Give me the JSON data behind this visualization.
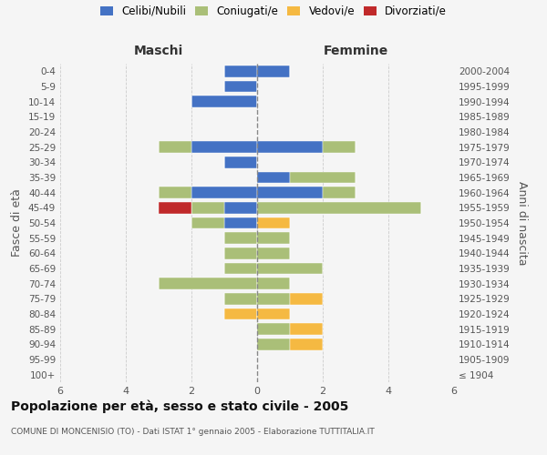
{
  "age_groups": [
    "100+",
    "95-99",
    "90-94",
    "85-89",
    "80-84",
    "75-79",
    "70-74",
    "65-69",
    "60-64",
    "55-59",
    "50-54",
    "45-49",
    "40-44",
    "35-39",
    "30-34",
    "25-29",
    "20-24",
    "15-19",
    "10-14",
    "5-9",
    "0-4"
  ],
  "birth_years": [
    "≤ 1904",
    "1905-1909",
    "1910-1914",
    "1915-1919",
    "1920-1924",
    "1925-1929",
    "1930-1934",
    "1935-1939",
    "1940-1944",
    "1945-1949",
    "1950-1954",
    "1955-1959",
    "1960-1964",
    "1965-1969",
    "1970-1974",
    "1975-1979",
    "1980-1984",
    "1985-1989",
    "1990-1994",
    "1995-1999",
    "2000-2004"
  ],
  "maschi": {
    "celibi": [
      0,
      0,
      0,
      0,
      0,
      0,
      0,
      0,
      0,
      0,
      1,
      1,
      2,
      0,
      1,
      2,
      0,
      0,
      2,
      1,
      1
    ],
    "coniugati": [
      0,
      0,
      0,
      0,
      0,
      1,
      3,
      1,
      1,
      1,
      1,
      1,
      1,
      0,
      0,
      1,
      0,
      0,
      0,
      0,
      0
    ],
    "vedovi": [
      0,
      0,
      0,
      0,
      1,
      0,
      0,
      0,
      0,
      0,
      0,
      0,
      0,
      0,
      0,
      0,
      0,
      0,
      0,
      0,
      0
    ],
    "divorziati": [
      0,
      0,
      0,
      0,
      0,
      0,
      0,
      0,
      0,
      0,
      0,
      1,
      0,
      0,
      0,
      0,
      0,
      0,
      0,
      0,
      0
    ]
  },
  "femmine": {
    "nubili": [
      0,
      0,
      0,
      0,
      0,
      0,
      0,
      0,
      0,
      0,
      0,
      0,
      2,
      1,
      0,
      2,
      0,
      0,
      0,
      0,
      1
    ],
    "coniugate": [
      0,
      0,
      1,
      1,
      0,
      1,
      1,
      2,
      1,
      1,
      0,
      5,
      1,
      2,
      0,
      1,
      0,
      0,
      0,
      0,
      0
    ],
    "vedove": [
      0,
      0,
      1,
      1,
      1,
      1,
      0,
      0,
      0,
      0,
      1,
      0,
      0,
      0,
      0,
      0,
      0,
      0,
      0,
      0,
      0
    ],
    "divorziate": [
      0,
      0,
      0,
      0,
      0,
      0,
      0,
      0,
      0,
      0,
      0,
      0,
      0,
      0,
      0,
      0,
      0,
      0,
      0,
      0,
      0
    ]
  },
  "colors": {
    "celibi_nubili": "#4472C4",
    "coniugati": "#AABF78",
    "vedovi": "#F5B942",
    "divorziati": "#C0292A"
  },
  "xlim": [
    -6,
    6
  ],
  "title": "Popolazione per età, sesso e stato civile - 2005",
  "subtitle": "COMUNE DI MONCENISIO (TO) - Dati ISTAT 1° gennaio 2005 - Elaborazione TUTTITALIA.IT",
  "ylabel_left": "Fasce di età",
  "ylabel_right": "Anni di nascita",
  "xlabel_maschi": "Maschi",
  "xlabel_femmine": "Femmine",
  "background_color": "#f5f5f5",
  "grid_color": "#cccccc"
}
